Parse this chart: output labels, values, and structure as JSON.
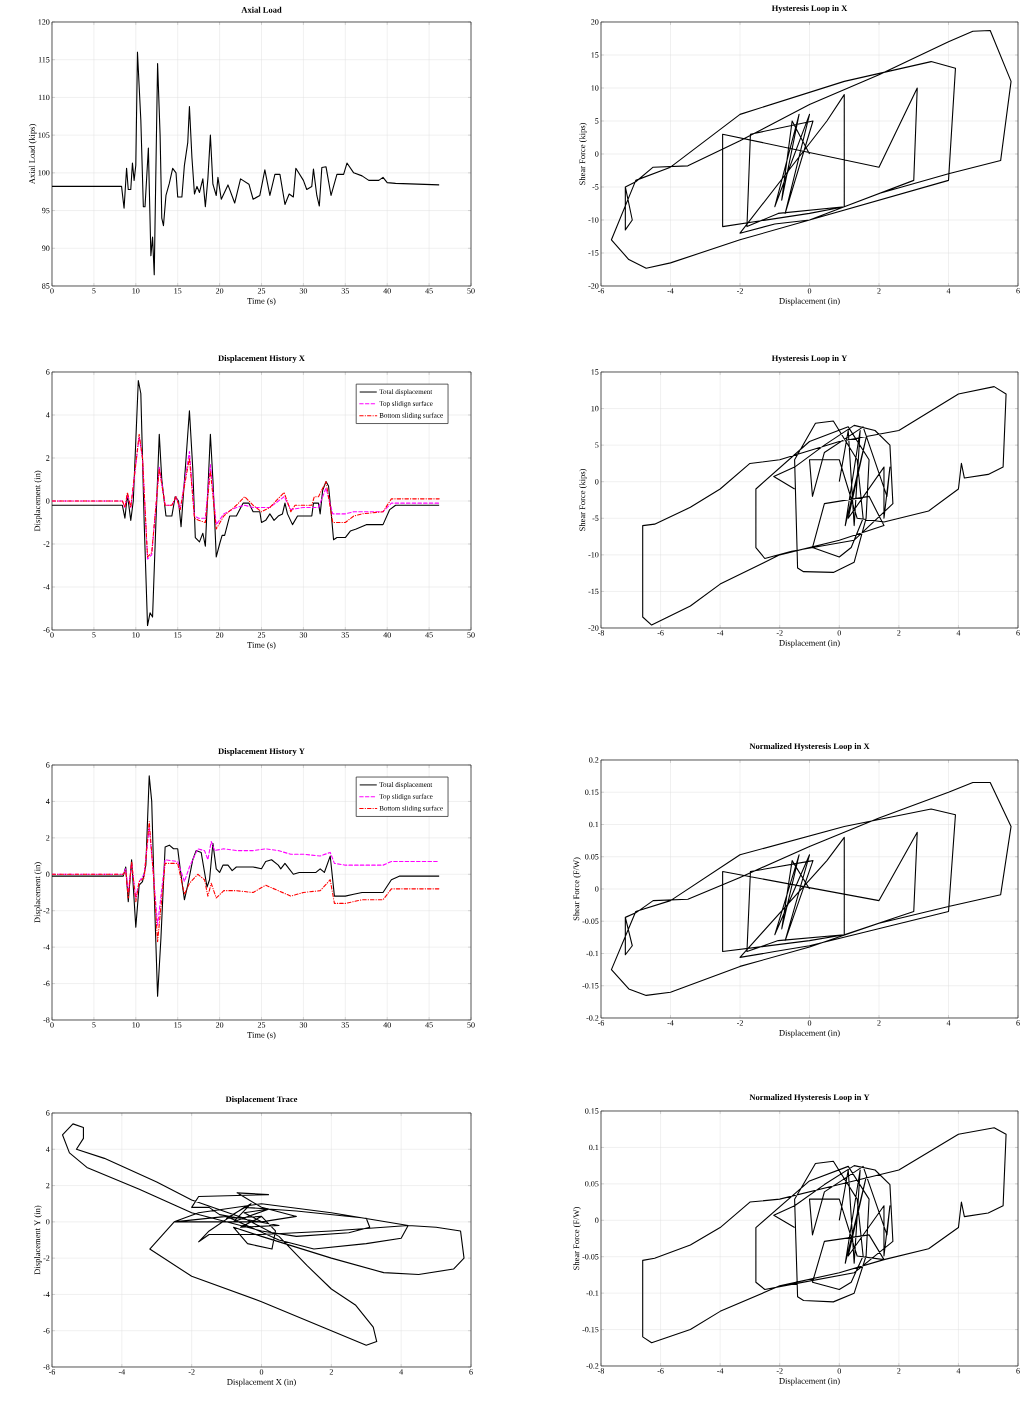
{
  "chart_data": [
    {
      "type": "line",
      "title": "Axial Load",
      "xlabel": "Time (s)",
      "ylabel": "Axial Load (kips)",
      "grid": true,
      "xlim": [
        0,
        50
      ],
      "ylim": [
        85,
        120
      ],
      "xticks": [
        0,
        5,
        10,
        15,
        20,
        25,
        30,
        35,
        40,
        45,
        50
      ],
      "yticks": [
        85,
        90,
        95,
        100,
        105,
        110,
        115,
        120
      ],
      "series": [
        {
          "color": "#000000",
          "line_style": "solid",
          "x": [
            0,
            8.3,
            8.6,
            8.9,
            9.1,
            9.4,
            9.6,
            9.8,
            10,
            10.2,
            10.6,
            10.9,
            11.1,
            11.5,
            11.8,
            12,
            12.2,
            12.6,
            12.9,
            13.1,
            13.3,
            13.6,
            14,
            14.4,
            14.8,
            15,
            15.5,
            15.8,
            16.2,
            16.4,
            16.7,
            17,
            17.3,
            17.6,
            18,
            18.3,
            18.6,
            18.9,
            19.2,
            19.6,
            19.8,
            20.2,
            21,
            21.8,
            22.5,
            23.5,
            24,
            24.8,
            25.4,
            26,
            26.6,
            27.2,
            27.8,
            28.3,
            28.8,
            29.1,
            30,
            30.4,
            31,
            31.2,
            31.6,
            31.9,
            32.2,
            32.7,
            33.3,
            34,
            34.8,
            35.2,
            36,
            37,
            37.8,
            39,
            39.5,
            40,
            41,
            46.2
          ],
          "values": [
            98.2,
            98.2,
            95.3,
            100.6,
            97.8,
            97.8,
            101.3,
            99,
            101,
            116,
            107,
            95.5,
            95.5,
            103.3,
            89,
            91.5,
            86.5,
            114.5,
            105,
            94,
            93,
            97,
            98.6,
            100.6,
            100,
            96.8,
            96.8,
            101,
            104,
            108.8,
            102,
            97.2,
            98.2,
            97.4,
            99.2,
            95.5,
            99.2,
            105,
            98.5,
            97,
            99.4,
            96.5,
            98.4,
            96,
            99.2,
            98.5,
            96.5,
            97,
            100.4,
            97,
            99.8,
            99.8,
            95.8,
            97.2,
            96.8,
            100.6,
            99,
            97.8,
            98.2,
            100.5,
            97,
            95.6,
            100.7,
            100.8,
            97,
            99.8,
            99.8,
            101.3,
            100,
            99.6,
            99,
            99,
            99.4,
            98.7,
            98.6,
            98.4
          ]
        }
      ]
    },
    {
      "type": "line",
      "title": "Hysteresis Loop in X",
      "xlabel": "Displacement (in)",
      "ylabel": "Shear Force (kips)",
      "grid": true,
      "xlim": [
        -6,
        6
      ],
      "ylim": [
        -20,
        20
      ],
      "xticks": [
        -6,
        -4,
        -2,
        0,
        2,
        4,
        6
      ],
      "yticks": [
        -20,
        -15,
        -10,
        -5,
        0,
        5,
        10,
        15,
        20
      ],
      "series": [
        {
          "color": "#000000",
          "line_style": "solid",
          "x": [
            0,
            -0.5,
            -0.8,
            -0.3,
            -1,
            0,
            -0.7,
            0.1,
            -1.7,
            -1.8,
            -0.9,
            1,
            3,
            3.1,
            2,
            -2.5,
            -2.5,
            0,
            1,
            1,
            0.5,
            -2,
            -1,
            0,
            4,
            4.2,
            3.5,
            1,
            -2,
            -4,
            -5,
            -5.7,
            -5.2,
            -4.7,
            -4,
            -2,
            0,
            2,
            4,
            5.5,
            5.8,
            5.2,
            4.7,
            4,
            2,
            0,
            -2,
            -3.5,
            -4.5,
            -5,
            -5.3,
            -5.3,
            -5.1,
            -5.3
          ],
          "values": [
            0,
            5,
            -7,
            6,
            -8,
            6,
            -9,
            5,
            3,
            -11,
            -9,
            -8,
            -4,
            10,
            -2,
            3,
            -11,
            -9,
            -8,
            9,
            5,
            -12,
            -10.6,
            -10,
            -4,
            13,
            14,
            11,
            6,
            -2,
            -4,
            -13,
            -16,
            -17.3,
            -16.5,
            -13,
            -10,
            -6,
            -3,
            -1,
            11,
            18.7,
            18.6,
            17,
            12,
            7.5,
            2,
            -1.8,
            -2,
            -4.2,
            -5,
            -11.5,
            -10,
            -5
          ]
        }
      ]
    },
    {
      "type": "line",
      "title": "Displacement History X",
      "xlabel": "Time (s)",
      "ylabel": "Displacement (in)",
      "grid": true,
      "legend": "top right",
      "xlim": [
        0,
        50
      ],
      "ylim": [
        -6,
        6
      ],
      "xticks": [
        0,
        5,
        10,
        15,
        20,
        25,
        30,
        35,
        40,
        45,
        50
      ],
      "yticks": [
        -6,
        -4,
        -2,
        0,
        2,
        4,
        6
      ],
      "series": [
        {
          "name": "Total displacement",
          "color": "#000000",
          "line_style": "solid",
          "x": [
            0,
            8.4,
            8.7,
            9,
            9.4,
            9.7,
            10.3,
            10.6,
            11,
            11.4,
            11.7,
            12,
            12.4,
            12.8,
            13.1,
            13.6,
            14.3,
            14.7,
            15.1,
            15.4,
            16,
            16.4,
            16.8,
            17.1,
            17.6,
            18,
            18.3,
            18.9,
            19.2,
            19.6,
            20,
            20.3,
            20.6,
            21.2,
            22,
            22.8,
            23.5,
            24,
            24.8,
            25,
            25.5,
            26,
            26.5,
            27,
            27.5,
            27.8,
            28.1,
            28.7,
            29.3,
            31,
            31.2,
            31.8,
            32,
            32.3,
            32.7,
            33,
            33.3,
            33.6,
            34,
            35,
            35.6,
            36.3,
            37.5,
            39.5,
            40.3,
            41,
            46.2
          ],
          "values": [
            -0.2,
            -0.2,
            -0.8,
            0.3,
            -0.9,
            0,
            5.6,
            5,
            -1,
            -5.8,
            -5.2,
            -5.4,
            -1,
            3.1,
            1,
            -0.7,
            -0.7,
            0.2,
            0,
            -1.2,
            2,
            4.2,
            1.5,
            -1.7,
            -1.9,
            -1.5,
            -2.1,
            3.1,
            1,
            -2.6,
            -2,
            -1.6,
            -1.6,
            -0.7,
            -0.7,
            -0.1,
            -0.1,
            -0.5,
            -0.5,
            -1,
            -0.9,
            -0.6,
            -0.9,
            -0.7,
            -0.6,
            -0.1,
            -0.6,
            -1.1,
            -0.7,
            -0.7,
            -0.1,
            -0.1,
            -0.6,
            0.5,
            0.9,
            0.7,
            -0.5,
            -1.8,
            -1.7,
            -1.7,
            -1.4,
            -1.3,
            -1.1,
            -1.1,
            -0.4,
            -0.2,
            -0.2
          ]
        },
        {
          "name": "Top slidign surface",
          "color": "#ff00ff",
          "line_style": "dashed",
          "x": [
            0,
            8.4,
            8.7,
            9,
            9.4,
            10.4,
            10.8,
            11.4,
            11.9,
            12.8,
            13.5,
            14.3,
            14.8,
            15.3,
            16.4,
            17,
            17.5,
            18.3,
            18.9,
            19.6,
            20.5,
            22,
            23,
            24,
            26,
            27.7,
            28.5,
            30,
            31.8,
            32.7,
            33.5,
            35,
            36,
            37,
            39.5,
            40.5,
            46.2
          ],
          "values": [
            0,
            0,
            -0.3,
            0.3,
            -0.3,
            3,
            2,
            -2.7,
            -2.5,
            1.6,
            -0.2,
            -0.2,
            0.2,
            -0.4,
            2.3,
            -0.7,
            -0.8,
            -0.8,
            1.7,
            -1.1,
            -0.6,
            -0.3,
            -0.2,
            -0.3,
            -0.3,
            0.2,
            -0.4,
            -0.3,
            -0.3,
            0.6,
            -0.6,
            -0.6,
            -0.5,
            -0.5,
            -0.5,
            -0.1,
            -0.1
          ]
        },
        {
          "name": "Bottom sliding surface",
          "color": "#ff0000",
          "line_style": "dashdot",
          "x": [
            0,
            8.4,
            8.7,
            9,
            9.4,
            10.4,
            10.8,
            11.4,
            11.9,
            12.8,
            13.5,
            14.3,
            14.8,
            15.3,
            16.4,
            17,
            17.5,
            18.3,
            18.9,
            19.6,
            20.5,
            22,
            23,
            24,
            25,
            26,
            27.7,
            28.5,
            29,
            31,
            31.3,
            31.8,
            32.7,
            33.5,
            35,
            36,
            37,
            39.5,
            40.5,
            46.2
          ],
          "values": [
            0,
            0,
            -0.3,
            0.4,
            -0.3,
            3.1,
            2,
            -2.6,
            -2.4,
            1.5,
            -0.2,
            -0.2,
            0.2,
            -0.4,
            2,
            -0.8,
            -0.9,
            -1,
            1.4,
            -1.3,
            -0.7,
            -0.2,
            0.2,
            -0.2,
            -0.5,
            -0.3,
            0.4,
            -0.5,
            -0.2,
            -0.2,
            0.2,
            0.2,
            0.9,
            -1,
            -1,
            -0.7,
            -0.6,
            -0.5,
            0.1,
            0.1
          ]
        }
      ]
    },
    {
      "type": "line",
      "title": "Hysteresis Loop in Y",
      "xlabel": "Displacement (in)",
      "ylabel": "Shear Force (kips)",
      "grid": true,
      "xlim": [
        -8,
        6
      ],
      "ylim": [
        -20,
        15
      ],
      "xticks": [
        -8,
        -6,
        -4,
        -2,
        0,
        2,
        4,
        6
      ],
      "yticks": [
        -20,
        -15,
        -10,
        -5,
        0,
        5,
        10,
        15
      ],
      "series": [
        {
          "color": "#000000",
          "line_style": "solid",
          "x": [
            0,
            0.3,
            0.5,
            0.7,
            0.2,
            0.9,
            0.3,
            1.5,
            1.5,
            1.7,
            1.6,
            0.8,
            -0.5,
            -0.9,
            -1,
            0,
            0.6,
            1.5,
            3,
            4,
            4.1,
            4.2,
            5,
            5.5,
            5.6,
            5.2,
            4,
            2,
            0,
            -2,
            -3,
            -4,
            -5,
            -6.2,
            -6.6,
            -6.6,
            -6.3,
            -5,
            -4,
            -2,
            0,
            1.5,
            1,
            -0.5,
            -0.9,
            0,
            0.4,
            0.8,
            0.6,
            -0.2,
            -0.8,
            -1.5,
            -1.4,
            -1.2,
            -0.2,
            0.5,
            0.9,
            1,
            0.3,
            -1,
            -2.8,
            -2.8,
            -2.5,
            -1.6,
            0.5,
            1.8,
            1.7,
            1.2,
            0.5,
            -0.5,
            -1.5,
            -2.2,
            -1.5
          ],
          "values": [
            0,
            7,
            -6,
            7,
            -6,
            6,
            -5,
            2,
            -5,
            2,
            -2,
            7.5,
            4,
            -2,
            3,
            3,
            -5,
            -5.5,
            -4,
            -1,
            2.5,
            0.5,
            1,
            2,
            12,
            13,
            12,
            7,
            5.5,
            3,
            2.5,
            -1,
            -3.5,
            -5.8,
            -6,
            -18.5,
            -19.6,
            -17,
            -14,
            -10,
            -8,
            -6,
            -2,
            -3,
            -9,
            -10.3,
            -9,
            -5,
            3,
            8.3,
            8,
            3,
            -11.8,
            -12.3,
            -12.4,
            -11,
            -5,
            3,
            7.5,
            5.5,
            -1,
            -9,
            -10.5,
            -9.5,
            -8,
            -3,
            5,
            7,
            7.7,
            5,
            2,
            0.7,
            -1
          ]
        }
      ]
    },
    {
      "type": "line",
      "title": "Displacement History Y",
      "xlabel": "Time (s)",
      "ylabel": "Displacement (in)",
      "grid": true,
      "legend": "top right",
      "xlim": [
        0,
        50
      ],
      "ylim": [
        -8,
        6
      ],
      "xticks": [
        0,
        5,
        10,
        15,
        20,
        25,
        30,
        35,
        40,
        45,
        50
      ],
      "yticks": [
        -8,
        -6,
        -4,
        -2,
        0,
        2,
        4,
        6
      ],
      "series": [
        {
          "name": "Total displacement",
          "color": "#000000",
          "line_style": "solid",
          "x": [
            0,
            8.5,
            8.8,
            9.1,
            9.5,
            10,
            10.4,
            10.8,
            11.2,
            11.6,
            11.9,
            12.2,
            12.6,
            13,
            13.5,
            14,
            14.5,
            15,
            15.3,
            15.8,
            16.2,
            16.8,
            17.2,
            17.8,
            18.5,
            18.8,
            19.2,
            19.6,
            20,
            20.4,
            21,
            21.5,
            22,
            24,
            25,
            25.5,
            26.2,
            27,
            27.3,
            27.8,
            28.3,
            28.8,
            29.5,
            31.5,
            32,
            32.5,
            33.2,
            33.7,
            35,
            36,
            37,
            39.5,
            40.5,
            41.5,
            46.2
          ],
          "values": [
            -0.1,
            -0.1,
            0.4,
            -1.5,
            0.8,
            -2.9,
            -0.6,
            -0.4,
            0.5,
            5.4,
            4,
            -1,
            -6.7,
            -3.5,
            1.5,
            1.6,
            1.4,
            1.4,
            0.3,
            -1.4,
            -0.6,
            0.8,
            1.3,
            1.2,
            -0.7,
            -0.3,
            1.7,
            0.3,
            0.1,
            0.5,
            0.5,
            0.2,
            0.4,
            0.4,
            0.3,
            0.7,
            0.8,
            0.5,
            0.3,
            0.6,
            0.3,
            0,
            0.1,
            0.1,
            0.3,
            0.1,
            1,
            -1.2,
            -1.2,
            -1.1,
            -1,
            -1,
            -0.3,
            -0.1,
            -0.1
          ]
        },
        {
          "name": "Top slidign surface",
          "color": "#ff00ff",
          "line_style": "dashed",
          "x": [
            0,
            8.5,
            8.8,
            9.1,
            9.5,
            10,
            10.4,
            11,
            11.6,
            12.1,
            12.6,
            13.5,
            15,
            15.8,
            16.4,
            17.4,
            18.2,
            18.6,
            19,
            19.4,
            20.5,
            22,
            24,
            25.5,
            27,
            28.5,
            30,
            32,
            33.2,
            33.7,
            35,
            37,
            39.5,
            40.5,
            46.2
          ],
          "values": [
            0,
            0,
            0.3,
            -1,
            0.6,
            -1.3,
            -0.4,
            0,
            2.6,
            0,
            -2.8,
            0.8,
            0.7,
            -0.4,
            0.4,
            1.4,
            1.3,
            0.8,
            1.8,
            1.3,
            1.4,
            1.3,
            1.3,
            1.4,
            1.3,
            1.1,
            1.1,
            1,
            1.2,
            0.6,
            0.5,
            0.5,
            0.5,
            0.7,
            0.7
          ]
        },
        {
          "name": "Bottom sliding surface",
          "color": "#ff0000",
          "line_style": "dashdot",
          "x": [
            0,
            8.5,
            8.8,
            9.1,
            9.5,
            10,
            10.4,
            11,
            11.6,
            12.1,
            12.6,
            13.5,
            15,
            15.8,
            16.4,
            17.4,
            18.2,
            18.6,
            19,
            19.6,
            20.5,
            22,
            24,
            25.5,
            27,
            28.5,
            30,
            32,
            33.2,
            33.7,
            35,
            37,
            39.5,
            40.5,
            46.2
          ],
          "values": [
            0,
            0,
            0.2,
            -1.3,
            0.7,
            -1.5,
            -0.4,
            -0.2,
            2.9,
            0,
            -3.7,
            0.6,
            0.6,
            -1.1,
            -0.5,
            0,
            -0.3,
            -1.2,
            -0.5,
            -1.3,
            -0.9,
            -0.9,
            -1,
            -0.6,
            -0.9,
            -1.2,
            -1,
            -0.9,
            -0.3,
            -1.6,
            -1.6,
            -1.4,
            -1.4,
            -0.8,
            -0.8
          ]
        }
      ]
    },
    {
      "type": "line",
      "title": "Normalized Hysteresis Loop in X",
      "xlabel": "Displacement (in)",
      "ylabel": "Shear Force (F/W)",
      "grid": true,
      "xlim": [
        -6,
        6
      ],
      "ylim": [
        -0.2,
        0.2
      ],
      "xticks": [
        -6,
        -4,
        -2,
        0,
        2,
        4,
        6
      ],
      "yticks": [
        -0.2,
        -0.15,
        -0.1,
        -0.05,
        0,
        0.05,
        0.1,
        0.15,
        0.2
      ],
      "series": [
        {
          "color": "#000000",
          "line_style": "solid",
          "x": [
            0,
            -0.5,
            -0.8,
            -0.3,
            -1,
            0,
            -0.7,
            0.1,
            -1.7,
            -1.8,
            -0.9,
            1,
            3,
            3.1,
            2,
            -2.5,
            -2.5,
            0,
            1,
            1,
            0.5,
            -2,
            -1,
            0,
            4,
            4.2,
            3.5,
            1,
            -2,
            -4,
            -5,
            -5.7,
            -5.2,
            -4.7,
            -4,
            -2,
            0,
            2,
            4,
            5.5,
            5.8,
            5.2,
            4.7,
            4,
            2,
            0,
            -2,
            -3.5,
            -4.5,
            -5,
            -5.3,
            -5.3,
            -5.1,
            -5.3
          ],
          "values": [
            0,
            0.044,
            -0.062,
            0.053,
            -0.071,
            0.053,
            -0.08,
            0.044,
            0.027,
            -0.097,
            -0.08,
            -0.071,
            -0.035,
            0.088,
            -0.018,
            0.027,
            -0.097,
            -0.08,
            -0.071,
            0.08,
            0.044,
            -0.106,
            -0.097,
            -0.088,
            -0.035,
            0.115,
            0.124,
            0.097,
            0.053,
            -0.018,
            -0.035,
            -0.125,
            -0.155,
            -0.165,
            -0.16,
            -0.12,
            -0.09,
            -0.053,
            -0.027,
            -0.009,
            0.097,
            0.165,
            0.165,
            0.15,
            0.11,
            0.066,
            0.018,
            -0.016,
            -0.018,
            -0.037,
            -0.044,
            -0.102,
            -0.088,
            -0.044
          ]
        }
      ]
    },
    {
      "type": "line",
      "title": "Displacement Trace",
      "xlabel": "Displacement X (in)",
      "ylabel": "Displacement Y (in)",
      "grid": true,
      "xlim": [
        -6,
        6
      ],
      "ylim": [
        -8,
        6
      ],
      "xticks": [
        -6,
        -4,
        -2,
        0,
        2,
        4,
        6
      ],
      "yticks": [
        -8,
        -6,
        -4,
        -2,
        0,
        2,
        4,
        6
      ],
      "series": [
        {
          "color": "#000000",
          "line_style": "solid",
          "x": [
            0,
            -0.5,
            0.2,
            -0.8,
            -0.3,
            -1,
            0,
            -0.6,
            0.5,
            -1.2,
            -1.5,
            -2,
            -1.8,
            0.2,
            -0.7,
            0,
            1,
            0,
            -2.5,
            -1.8,
            0,
            2,
            4.2,
            2,
            0,
            -1.5,
            -1.8,
            -1.5,
            -0.5,
            1,
            3,
            3.1,
            2.5,
            1,
            0,
            -2,
            -3.5,
            -5,
            -5.5,
            -5.7,
            -5.4,
            -5.1,
            -5.1,
            -5.3,
            -4.5,
            -3,
            -2,
            -0.5,
            0.5,
            1.3,
            2,
            2.7,
            3.2,
            3.3,
            3,
            2,
            0,
            -2,
            -3.2,
            -2.5,
            -1,
            0.5,
            1.5,
            3,
            4,
            4.2,
            5,
            5.7,
            5.8,
            5.5,
            4.5,
            3.5,
            2,
            0,
            -0.8,
            -0.4,
            0.3,
            0.4,
            0
          ],
          "values": [
            0,
            0.5,
            0.7,
            0,
            1,
            0.2,
            0.3,
            -0.3,
            -0.2,
            0.4,
            0.8,
            0.8,
            1.4,
            1.5,
            1.6,
            0.8,
            0.3,
            0,
            0,
            0.5,
            1,
            0.5,
            -0.2,
            -0.5,
            -0.7,
            -0.7,
            -1.1,
            -0.5,
            0.8,
            0.6,
            0.2,
            -0.3,
            -0.6,
            -0.8,
            -0.5,
            0.5,
            1.8,
            3,
            3.8,
            4.8,
            5.4,
            5.2,
            4.6,
            4,
            3.5,
            2.2,
            1.2,
            0.2,
            -0.8,
            -2.4,
            -3.7,
            -4.6,
            -5.8,
            -6.6,
            -6.8,
            -6,
            -4.4,
            -3,
            -1.5,
            0,
            0.3,
            -1,
            -1.5,
            -1.2,
            -0.9,
            -0.2,
            -0.3,
            -0.5,
            -2,
            -2.6,
            -2.9,
            -2.8,
            -2,
            -0.8,
            -0.3,
            -1.2,
            -1.5,
            -0.5,
            0.3
          ]
        }
      ]
    },
    {
      "type": "line",
      "title": "Normalized Hysteresis Loop in Y",
      "xlabel": "Displacement (in)",
      "ylabel": "Shear Force (F/W)",
      "grid": true,
      "xlim": [
        -8,
        6
      ],
      "ylim": [
        -0.2,
        0.15
      ],
      "xticks": [
        -8,
        -6,
        -4,
        -2,
        0,
        2,
        4,
        6
      ],
      "yticks": [
        -0.2,
        -0.15,
        -0.1,
        -0.05,
        0,
        0.05,
        0.1,
        0.15
      ],
      "series": [
        {
          "color": "#000000",
          "line_style": "solid",
          "x": [
            0,
            0.3,
            0.5,
            0.7,
            0.2,
            0.9,
            0.3,
            1.5,
            1.5,
            1.7,
            1.6,
            0.8,
            -0.5,
            -0.9,
            -1,
            0,
            0.6,
            1.5,
            3,
            4,
            4.1,
            4.2,
            5,
            5.5,
            5.6,
            5.2,
            4,
            2,
            0,
            -2,
            -3,
            -4,
            -5,
            -6.2,
            -6.6,
            -6.6,
            -6.3,
            -5,
            -4,
            -2,
            0,
            1.5,
            1,
            -0.5,
            -0.9,
            0,
            0.4,
            0.8,
            0.6,
            -0.2,
            -0.8,
            -1.5,
            -1.4,
            -1.2,
            -0.2,
            0.5,
            0.9,
            1,
            0.3,
            -1,
            -2.8,
            -2.8,
            -2.5,
            -1.6,
            0.5,
            1.8,
            1.7,
            1.2,
            0.5,
            -0.5,
            -1.5,
            -2.2,
            -1.5
          ],
          "values": [
            0,
            0.069,
            -0.059,
            0.069,
            -0.059,
            0.059,
            -0.049,
            0.02,
            -0.049,
            0.02,
            -0.02,
            0.074,
            0.039,
            -0.02,
            0.029,
            0.029,
            -0.049,
            -0.054,
            -0.039,
            -0.01,
            0.025,
            0.005,
            0.01,
            0.02,
            0.118,
            0.127,
            0.118,
            0.069,
            0.049,
            0.029,
            0.025,
            -0.01,
            -0.034,
            -0.052,
            -0.055,
            -0.16,
            -0.168,
            -0.15,
            -0.125,
            -0.09,
            -0.072,
            -0.054,
            -0.02,
            -0.029,
            -0.085,
            -0.095,
            -0.085,
            -0.049,
            0.029,
            0.081,
            0.078,
            0.029,
            -0.105,
            -0.11,
            -0.112,
            -0.1,
            -0.049,
            0.029,
            0.074,
            0.054,
            -0.01,
            -0.085,
            -0.095,
            -0.088,
            -0.072,
            -0.029,
            0.049,
            0.069,
            0.075,
            0.049,
            0.02,
            0.007,
            -0.01
          ]
        }
      ]
    }
  ]
}
